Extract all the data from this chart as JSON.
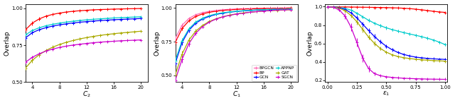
{
  "fig_width": 6.4,
  "fig_height": 1.46,
  "dpi": 100,
  "bg_color": "#ffffff",
  "plot1": {
    "xlabel": "$C_2$",
    "ylabel": "Overlap",
    "xlim": [
      3,
      21
    ],
    "ylim": [
      0.5,
      1.03
    ],
    "xticks": [
      4,
      8,
      12,
      16,
      20
    ],
    "yticks": [
      0.5,
      0.75,
      1.0
    ],
    "x": [
      3,
      4,
      5,
      6,
      7,
      8,
      9,
      10,
      11,
      12,
      13,
      14,
      15,
      16,
      17,
      18,
      19,
      20
    ],
    "curves": [
      {
        "color": "#ff0000",
        "y": [
          0.855,
          0.9,
          0.928,
          0.947,
          0.959,
          0.968,
          0.975,
          0.98,
          0.984,
          0.987,
          0.99,
          0.992,
          0.993,
          0.995,
          0.996,
          0.997,
          0.998,
          0.999
        ],
        "yerr": [
          0.018,
          0.015,
          0.012,
          0.01,
          0.008,
          0.007,
          0.006,
          0.005,
          0.005,
          0.004,
          0.004,
          0.003,
          0.003,
          0.003,
          0.002,
          0.002,
          0.002,
          0.002
        ]
      },
      {
        "color": "#00cccc",
        "y": [
          0.82,
          0.85,
          0.868,
          0.882,
          0.892,
          0.9,
          0.907,
          0.913,
          0.918,
          0.922,
          0.926,
          0.929,
          0.932,
          0.935,
          0.937,
          0.939,
          0.941,
          0.943
        ],
        "yerr": [
          0.015,
          0.012,
          0.01,
          0.009,
          0.008,
          0.007,
          0.006,
          0.006,
          0.005,
          0.005,
          0.005,
          0.004,
          0.004,
          0.004,
          0.004,
          0.003,
          0.003,
          0.003
        ]
      },
      {
        "color": "#0000ff",
        "y": [
          0.8,
          0.835,
          0.855,
          0.869,
          0.88,
          0.888,
          0.895,
          0.901,
          0.906,
          0.91,
          0.914,
          0.917,
          0.92,
          0.923,
          0.925,
          0.927,
          0.929,
          0.931
        ],
        "yerr": [
          0.015,
          0.012,
          0.01,
          0.009,
          0.008,
          0.007,
          0.006,
          0.006,
          0.005,
          0.005,
          0.005,
          0.004,
          0.004,
          0.004,
          0.004,
          0.003,
          0.003,
          0.003
        ]
      },
      {
        "color": "#aaaa00",
        "y": [
          0.595,
          0.648,
          0.685,
          0.714,
          0.737,
          0.755,
          0.77,
          0.782,
          0.793,
          0.802,
          0.81,
          0.817,
          0.823,
          0.828,
          0.833,
          0.837,
          0.841,
          0.845
        ],
        "yerr": [
          0.02,
          0.018,
          0.015,
          0.013,
          0.012,
          0.011,
          0.01,
          0.009,
          0.009,
          0.008,
          0.008,
          0.007,
          0.007,
          0.007,
          0.006,
          0.006,
          0.006,
          0.006
        ]
      },
      {
        "color": "#cc00cc",
        "y": [
          0.635,
          0.668,
          0.692,
          0.71,
          0.724,
          0.735,
          0.744,
          0.751,
          0.757,
          0.762,
          0.767,
          0.771,
          0.774,
          0.777,
          0.78,
          0.782,
          0.784,
          0.786
        ],
        "yerr": [
          0.015,
          0.013,
          0.011,
          0.01,
          0.009,
          0.008,
          0.007,
          0.007,
          0.006,
          0.006,
          0.006,
          0.005,
          0.005,
          0.005,
          0.005,
          0.004,
          0.004,
          0.004
        ]
      }
    ]
  },
  "plot2": {
    "xlabel": "$C_1$",
    "ylabel": "Overlap",
    "xlim": [
      3,
      21
    ],
    "ylim": [
      0.45,
      1.03
    ],
    "xticks": [
      4,
      8,
      12,
      16,
      20
    ],
    "yticks": [
      0.5,
      0.75,
      1.0
    ],
    "x": [
      3,
      4,
      5,
      6,
      7,
      8,
      9,
      10,
      11,
      12,
      13,
      14,
      15,
      16,
      17,
      18,
      19,
      20
    ],
    "legend_entries": [
      {
        "label": "BPGCN",
        "color": "#ff69b4"
      },
      {
        "label": "BP",
        "color": "#ff0000"
      },
      {
        "label": "GCN",
        "color": "#0000ff"
      },
      {
        "label": "APPNP",
        "color": "#00cccc"
      },
      {
        "label": "GAT",
        "color": "#aaaa00"
      },
      {
        "label": "SGCN",
        "color": "#cc00cc"
      }
    ],
    "curves": [
      {
        "color": "#ff69b4",
        "y": [
          0.775,
          0.872,
          0.922,
          0.95,
          0.965,
          0.975,
          0.982,
          0.987,
          0.99,
          0.993,
          0.995,
          0.996,
          0.997,
          0.998,
          0.999,
          0.999,
          1.0,
          1.0
        ],
        "yerr": [
          0.018,
          0.012,
          0.008,
          0.006,
          0.005,
          0.004,
          0.003,
          0.003,
          0.002,
          0.002,
          0.002,
          0.002,
          0.001,
          0.001,
          0.001,
          0.001,
          0.001,
          0.001
        ]
      },
      {
        "color": "#ff0000",
        "y": [
          0.745,
          0.848,
          0.905,
          0.937,
          0.956,
          0.968,
          0.976,
          0.982,
          0.986,
          0.989,
          0.992,
          0.993,
          0.995,
          0.996,
          0.997,
          0.998,
          0.998,
          0.999
        ],
        "yerr": [
          0.02,
          0.014,
          0.01,
          0.007,
          0.005,
          0.004,
          0.004,
          0.003,
          0.002,
          0.002,
          0.002,
          0.002,
          0.001,
          0.001,
          0.001,
          0.001,
          0.001,
          0.001
        ]
      },
      {
        "color": "#0000ff",
        "y": [
          0.59,
          0.745,
          0.835,
          0.887,
          0.918,
          0.938,
          0.952,
          0.962,
          0.969,
          0.974,
          0.978,
          0.981,
          0.984,
          0.986,
          0.988,
          0.99,
          0.991,
          0.992
        ],
        "yerr": [
          0.025,
          0.02,
          0.015,
          0.011,
          0.008,
          0.007,
          0.006,
          0.005,
          0.004,
          0.004,
          0.003,
          0.003,
          0.002,
          0.002,
          0.002,
          0.002,
          0.001,
          0.001
        ]
      },
      {
        "color": "#00cccc",
        "y": [
          0.61,
          0.758,
          0.845,
          0.895,
          0.924,
          0.943,
          0.956,
          0.965,
          0.971,
          0.976,
          0.98,
          0.983,
          0.986,
          0.988,
          0.99,
          0.991,
          0.992,
          0.993
        ],
        "yerr": [
          0.025,
          0.02,
          0.015,
          0.011,
          0.008,
          0.007,
          0.006,
          0.005,
          0.004,
          0.004,
          0.003,
          0.003,
          0.002,
          0.002,
          0.002,
          0.002,
          0.001,
          0.001
        ]
      },
      {
        "color": "#aaaa00",
        "y": [
          0.505,
          0.658,
          0.762,
          0.828,
          0.87,
          0.9,
          0.92,
          0.935,
          0.947,
          0.956,
          0.963,
          0.968,
          0.973,
          0.977,
          0.98,
          0.983,
          0.985,
          0.987
        ],
        "yerr": [
          0.028,
          0.023,
          0.018,
          0.014,
          0.01,
          0.008,
          0.007,
          0.006,
          0.005,
          0.004,
          0.004,
          0.003,
          0.003,
          0.002,
          0.002,
          0.002,
          0.002,
          0.001
        ]
      },
      {
        "color": "#cc00cc",
        "y": [
          0.465,
          0.62,
          0.735,
          0.812,
          0.862,
          0.895,
          0.918,
          0.934,
          0.946,
          0.955,
          0.962,
          0.968,
          0.973,
          0.977,
          0.981,
          0.984,
          0.986,
          0.988
        ],
        "yerr": [
          0.03,
          0.025,
          0.02,
          0.015,
          0.011,
          0.009,
          0.007,
          0.006,
          0.005,
          0.004,
          0.004,
          0.003,
          0.003,
          0.002,
          0.002,
          0.002,
          0.002,
          0.001
        ]
      }
    ]
  },
  "plot3": {
    "xlabel": "$\\varepsilon_1$",
    "ylabel": "Overlap",
    "xlim": [
      -0.02,
      1.02
    ],
    "ylim": [
      0.18,
      1.03
    ],
    "xticks": [
      0.0,
      0.25,
      0.5,
      0.75,
      1.0
    ],
    "yticks": [
      0.2,
      0.4,
      0.6,
      0.8,
      1.0
    ],
    "x": [
      0.0,
      0.05,
      0.1,
      0.15,
      0.2,
      0.25,
      0.3,
      0.35,
      0.4,
      0.45,
      0.5,
      0.55,
      0.6,
      0.65,
      0.7,
      0.75,
      0.8,
      0.85,
      0.9,
      0.95,
      1.0
    ],
    "curves": [
      {
        "color": "#ff0000",
        "y": [
          0.999,
          0.998,
          0.997,
          0.997,
          0.996,
          0.995,
          0.994,
          0.993,
          0.992,
          0.991,
          0.99,
          0.988,
          0.986,
          0.983,
          0.979,
          0.973,
          0.966,
          0.958,
          0.95,
          0.943,
          0.938
        ],
        "yerr": [
          0.002,
          0.002,
          0.002,
          0.002,
          0.002,
          0.002,
          0.002,
          0.002,
          0.002,
          0.002,
          0.003,
          0.003,
          0.003,
          0.004,
          0.004,
          0.005,
          0.005,
          0.006,
          0.006,
          0.007,
          0.007
        ]
      },
      {
        "color": "#00cccc",
        "y": [
          0.999,
          0.997,
          0.992,
          0.982,
          0.962,
          0.93,
          0.89,
          0.852,
          0.82,
          0.793,
          0.77,
          0.751,
          0.734,
          0.718,
          0.703,
          0.689,
          0.674,
          0.657,
          0.638,
          0.615,
          0.588
        ],
        "yerr": [
          0.003,
          0.005,
          0.008,
          0.01,
          0.012,
          0.015,
          0.017,
          0.018,
          0.018,
          0.018,
          0.017,
          0.017,
          0.016,
          0.016,
          0.016,
          0.016,
          0.016,
          0.016,
          0.016,
          0.016,
          0.016
        ]
      },
      {
        "color": "#0000ff",
        "y": [
          0.999,
          0.997,
          0.99,
          0.97,
          0.933,
          0.878,
          0.81,
          0.74,
          0.675,
          0.618,
          0.57,
          0.532,
          0.502,
          0.48,
          0.464,
          0.452,
          0.444,
          0.438,
          0.433,
          0.43,
          0.427
        ],
        "yerr": [
          0.003,
          0.005,
          0.01,
          0.015,
          0.02,
          0.025,
          0.028,
          0.028,
          0.026,
          0.023,
          0.02,
          0.017,
          0.014,
          0.012,
          0.01,
          0.009,
          0.008,
          0.007,
          0.007,
          0.006,
          0.006
        ]
      },
      {
        "color": "#aaaa00",
        "y": [
          0.999,
          0.996,
          0.984,
          0.955,
          0.905,
          0.836,
          0.752,
          0.669,
          0.6,
          0.546,
          0.506,
          0.477,
          0.458,
          0.445,
          0.436,
          0.429,
          0.423,
          0.418,
          0.414,
          0.411,
          0.408
        ],
        "yerr": [
          0.003,
          0.006,
          0.012,
          0.018,
          0.025,
          0.03,
          0.03,
          0.028,
          0.024,
          0.02,
          0.016,
          0.013,
          0.011,
          0.009,
          0.008,
          0.007,
          0.006,
          0.006,
          0.005,
          0.005,
          0.005
        ]
      },
      {
        "color": "#cc00cc",
        "y": [
          0.999,
          0.993,
          0.965,
          0.898,
          0.778,
          0.61,
          0.44,
          0.326,
          0.272,
          0.25,
          0.238,
          0.231,
          0.226,
          0.222,
          0.219,
          0.217,
          0.215,
          0.213,
          0.212,
          0.211,
          0.21
        ],
        "yerr": [
          0.003,
          0.008,
          0.018,
          0.03,
          0.04,
          0.045,
          0.042,
          0.032,
          0.02,
          0.012,
          0.008,
          0.006,
          0.005,
          0.004,
          0.004,
          0.003,
          0.003,
          0.003,
          0.002,
          0.002,
          0.002
        ]
      }
    ]
  }
}
